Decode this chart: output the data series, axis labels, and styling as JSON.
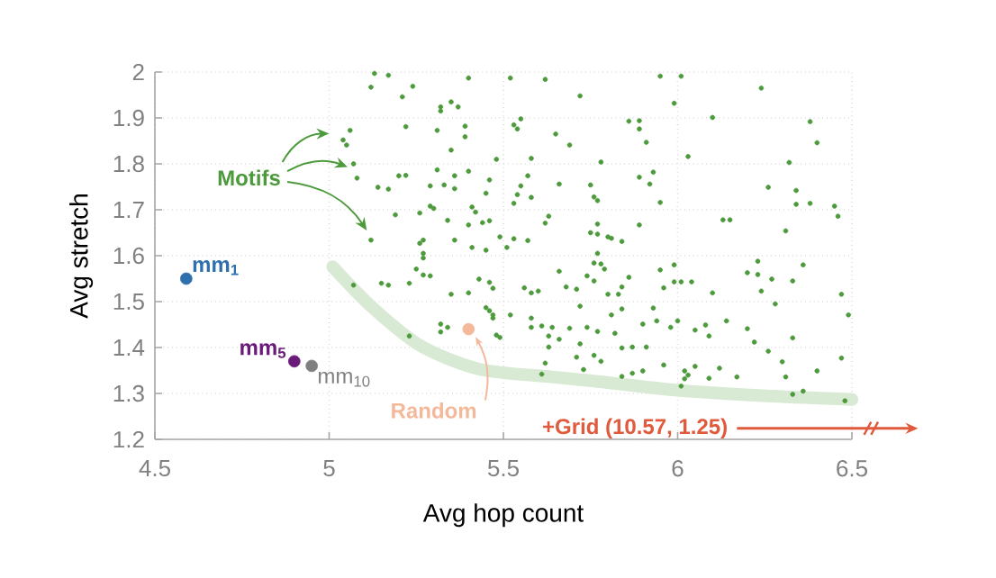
{
  "chart_data": {
    "type": "scatter",
    "xlabel": "Avg hop count",
    "ylabel": "Avg stretch",
    "xlim": [
      4.5,
      6.5
    ],
    "ylim": [
      1.2,
      2
    ],
    "xticks": [
      4.5,
      5,
      5.5,
      6,
      6.5
    ],
    "yticks": [
      1.2,
      1.3,
      1.4,
      1.5,
      1.6,
      1.7,
      1.8,
      1.9,
      2
    ],
    "grid": true,
    "annotations": [
      "+Grid (10.57, 1.25)"
    ],
    "series": [
      {
        "name": "mm$_{1}$",
        "marker": "circle",
        "color": "#2e6fad",
        "x": [
          4.59
        ],
        "values": [
          1.55
        ]
      },
      {
        "name": "Motifs",
        "marker": "circle",
        "color": "#4c9a3c",
        "x": [
          5.13,
          5.17,
          5.12,
          5.24,
          5.21,
          5.4,
          5.06,
          5.04,
          5.05,
          5.22,
          5.32,
          5.32,
          5.35,
          5.37,
          5.39,
          5.31,
          5.39,
          5.35,
          5.48,
          5.07,
          5.08,
          5.14,
          5.17,
          5.2,
          5.22,
          5.31,
          5.29,
          5.33,
          5.36,
          5.36,
          5.4,
          5.46,
          5.45,
          5.41,
          5.42,
          5.29,
          5.3,
          5.26,
          5.19,
          5.34,
          5.4,
          5.44,
          5.46,
          5.49,
          5.36,
          5.27,
          5.12,
          5.52,
          5.62,
          5.72,
          5.95,
          6.01,
          6.24,
          5.99,
          5.53,
          5.55,
          5.54,
          5.65,
          5.69,
          5.86,
          5.89,
          5.89,
          5.91,
          6.1,
          6.38,
          6.4,
          6.03,
          5.58,
          5.78,
          6.32,
          5.57,
          5.55,
          5.66,
          5.75,
          5.89,
          5.93,
          5.92,
          5.54,
          5.58,
          5.53,
          5.76,
          5.77,
          5.95,
          6.26,
          6.34,
          6.34,
          6.38,
          6.45,
          6.46,
          5.63,
          5.62,
          5.77,
          5.89,
          5.75,
          5.77,
          5.8,
          5.81,
          5.84,
          6.13,
          6.15,
          6.31,
          5.53,
          5.57,
          5.26,
          5.27,
          5.41,
          5.45,
          5.27,
          5.25,
          5.29,
          5.27,
          5.23,
          5.15,
          5.17,
          5.07,
          5.43,
          5.47,
          5.46,
          5.35,
          5.4,
          5.45,
          5.46,
          5.47,
          5.47,
          5.23,
          5.32,
          5.34,
          5.32,
          5.48,
          5.49,
          5.51,
          5.76,
          5.78,
          5.77,
          5.79,
          5.74,
          5.76,
          5.68,
          5.71,
          5.66,
          5.84,
          5.86,
          5.83,
          5.8,
          5.95,
          5.99,
          5.99,
          6.01,
          6.04,
          5.96,
          6.1,
          6.2,
          6.23,
          6.23,
          6.27,
          6.33,
          6.36,
          6.24,
          6.28,
          6.47,
          6.49,
          5.52,
          5.56,
          5.58,
          5.6,
          5.58,
          5.58,
          5.61,
          5.64,
          5.69,
          5.63,
          5.66,
          5.72,
          5.72,
          5.74,
          5.77,
          5.82,
          5.81,
          5.84,
          5.93,
          5.9,
          5.94,
          5.98,
          6.0,
          6.05,
          6.08,
          6.09,
          6.14,
          6.2,
          6.22,
          6.26,
          6.33,
          6.3,
          6.31,
          6.4,
          6.47,
          5.63,
          5.62,
          5.61,
          5.71,
          5.73,
          5.76,
          5.78,
          5.84,
          5.87,
          5.91,
          5.9,
          5.87,
          5.84,
          5.96,
          6.02,
          6.03,
          6.05,
          6.02,
          6.01,
          6.09,
          6.12,
          6.17,
          6.33,
          6.36,
          6.48
        ],
        "values": [
          1.997,
          1.993,
          1.967,
          1.969,
          1.946,
          1.987,
          1.873,
          1.852,
          1.841,
          1.881,
          1.924,
          1.915,
          1.935,
          1.924,
          1.882,
          1.873,
          1.859,
          1.83,
          1.81,
          1.8,
          1.769,
          1.749,
          1.745,
          1.774,
          1.775,
          1.787,
          1.752,
          1.754,
          1.746,
          1.774,
          1.784,
          1.765,
          1.736,
          1.706,
          1.695,
          1.708,
          1.703,
          1.693,
          1.689,
          1.677,
          1.667,
          1.672,
          1.676,
          1.641,
          1.634,
          1.634,
          1.634,
          1.987,
          1.984,
          1.948,
          1.991,
          1.991,
          1.965,
          1.932,
          1.885,
          1.898,
          1.876,
          1.865,
          1.841,
          1.893,
          1.894,
          1.876,
          1.847,
          1.901,
          1.892,
          1.846,
          1.816,
          1.812,
          1.804,
          1.803,
          1.774,
          1.752,
          1.756,
          1.754,
          1.771,
          1.782,
          1.756,
          1.733,
          1.727,
          1.714,
          1.728,
          1.72,
          1.716,
          1.749,
          1.742,
          1.712,
          1.714,
          1.708,
          1.686,
          1.686,
          1.671,
          1.669,
          1.667,
          1.65,
          1.647,
          1.641,
          1.638,
          1.631,
          1.678,
          1.678,
          1.654,
          1.637,
          1.633,
          1.627,
          1.605,
          1.618,
          1.612,
          1.595,
          1.571,
          1.556,
          1.558,
          1.54,
          1.54,
          1.536,
          1.536,
          1.549,
          1.529,
          1.542,
          1.516,
          1.519,
          1.487,
          1.48,
          1.471,
          1.464,
          1.425,
          1.451,
          1.444,
          1.434,
          1.427,
          1.422,
          1.618,
          1.584,
          1.582,
          1.605,
          1.571,
          1.556,
          1.545,
          1.532,
          1.527,
          1.566,
          1.532,
          1.553,
          1.516,
          1.516,
          1.569,
          1.58,
          1.543,
          1.543,
          1.543,
          1.53,
          1.519,
          1.563,
          1.588,
          1.559,
          1.549,
          1.545,
          1.58,
          1.523,
          1.495,
          1.516,
          1.471,
          1.471,
          1.53,
          1.519,
          1.523,
          1.464,
          1.444,
          1.447,
          1.444,
          1.442,
          1.425,
          1.418,
          1.49,
          1.408,
          1.444,
          1.435,
          1.431,
          1.471,
          1.484,
          1.486,
          1.451,
          1.458,
          1.444,
          1.458,
          1.438,
          1.449,
          1.425,
          1.458,
          1.441,
          1.412,
          1.392,
          1.421,
          1.369,
          1.336,
          1.349,
          1.377,
          1.401,
          1.366,
          1.342,
          1.379,
          1.352,
          1.383,
          1.37,
          1.399,
          1.401,
          1.401,
          1.349,
          1.344,
          1.337,
          1.362,
          1.349,
          1.34,
          1.359,
          1.332,
          1.316,
          1.333,
          1.355,
          1.336,
          1.298,
          1.305,
          1.284
        ]
      },
      {
        "name": "mm$_{5}$",
        "marker": "circle",
        "color": "#6a1b7a",
        "x": [
          4.9
        ],
        "values": [
          1.37
        ]
      },
      {
        "name": "mm$_{10}$",
        "marker": "circle",
        "color": "#808080",
        "x": [
          4.95
        ],
        "values": [
          1.36
        ]
      },
      {
        "name": "Random",
        "marker": "circle",
        "color": "#f4b89a",
        "x": [
          5.4
        ],
        "values": [
          1.44
        ]
      },
      {
        "type": "line",
        "marker": "none",
        "color": "#d8ead3",
        "x": [
          5.01,
          5.12,
          5.26,
          5.43,
          5.64,
          5.76,
          6.0,
          6.27,
          6.5
        ],
        "values": [
          1.576,
          1.49,
          1.405,
          1.353,
          1.336,
          1.327,
          1.307,
          1.294,
          1.287
        ]
      }
    ]
  }
}
